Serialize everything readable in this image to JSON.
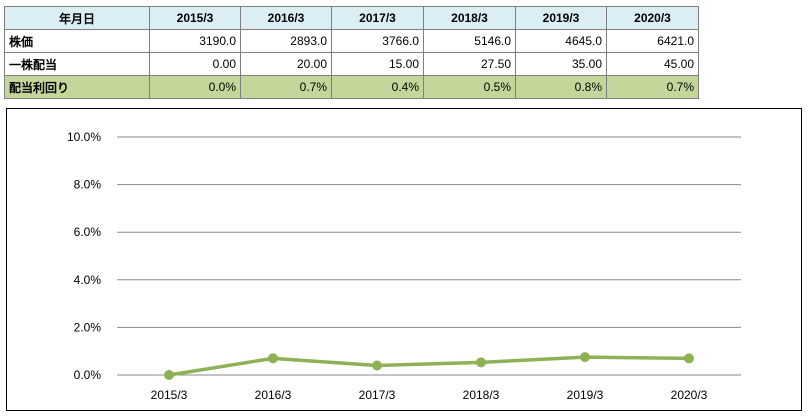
{
  "table": {
    "header_label": "年月日",
    "columns": [
      "2015/3",
      "2016/3",
      "2017/3",
      "2018/3",
      "2019/3",
      "2020/3"
    ],
    "rows": [
      {
        "label": "株価",
        "values": [
          "3190.0",
          "2893.0",
          "3766.0",
          "5146.0",
          "4645.0",
          "6421.0"
        ]
      },
      {
        "label": "一株配当",
        "values": [
          "0.00",
          "20.00",
          "15.00",
          "27.50",
          "35.00",
          "45.00"
        ]
      },
      {
        "label": "配当利回り",
        "values": [
          "0.0%",
          "0.7%",
          "0.4%",
          "0.5%",
          "0.8%",
          "0.7%"
        ]
      }
    ]
  },
  "colors": {
    "header_fill": "#daeef3",
    "yield_row_fill": "#c4d79b",
    "series_line": "#8db255",
    "gridline": "#888888"
  },
  "chart_data": {
    "type": "line",
    "categories": [
      "2015/3",
      "2016/3",
      "2017/3",
      "2018/3",
      "2019/3",
      "2020/3"
    ],
    "series": [
      {
        "values": [
          0.0,
          0.7,
          0.4,
          0.53,
          0.75,
          0.7
        ]
      }
    ],
    "ylim": [
      0,
      10
    ],
    "yticks": [
      "0.0%",
      "2.0%",
      "4.0%",
      "6.0%",
      "8.0%",
      "10.0%"
    ],
    "title": "",
    "xlabel": "",
    "ylabel": "",
    "grid": true,
    "legend": "none"
  }
}
